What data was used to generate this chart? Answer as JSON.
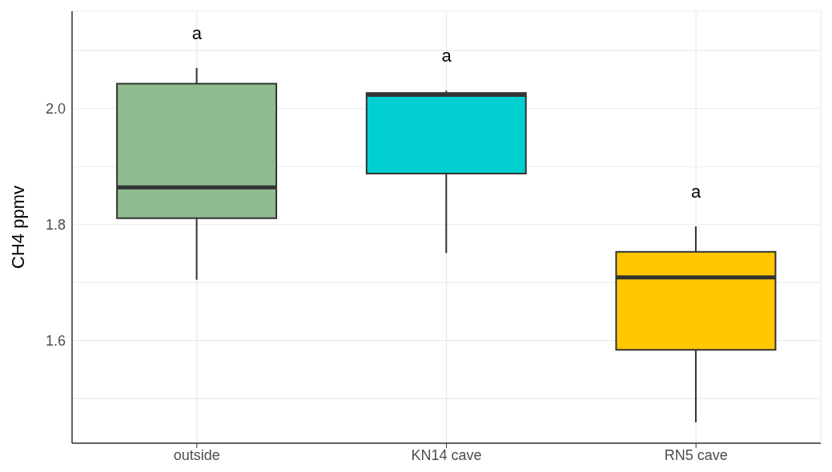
{
  "chart_data": {
    "type": "box",
    "ylabel": "CH4 ppmv",
    "categories": [
      "outside",
      "KN14 cave",
      "RN5 cave"
    ],
    "boxes": [
      {
        "low": 1.705,
        "q1": 1.811,
        "median": 1.864,
        "q3": 2.043,
        "high": 2.07
      },
      {
        "low": 1.751,
        "q1": 1.888,
        "median": 2.024,
        "q3": 2.027,
        "high": 2.031
      },
      {
        "low": 1.459,
        "q1": 1.584,
        "median": 1.709,
        "q3": 1.753,
        "high": 1.797
      }
    ],
    "colors": [
      "#8fbc8f",
      "#00ced1",
      "#ffc800"
    ],
    "ylim": [
      1.423,
      2.168
    ],
    "yticks": [
      {
        "value": 1.5,
        "label": null
      },
      {
        "value": 1.6,
        "label": "1.6"
      },
      {
        "value": 1.7,
        "label": null
      },
      {
        "value": 1.8,
        "label": "1.8"
      },
      {
        "value": 1.9,
        "label": null
      },
      {
        "value": 2.0,
        "label": "2.0"
      },
      {
        "value": 2.1,
        "label": null
      }
    ],
    "grid": true,
    "annotations": [
      "a",
      "a",
      "a"
    ]
  }
}
